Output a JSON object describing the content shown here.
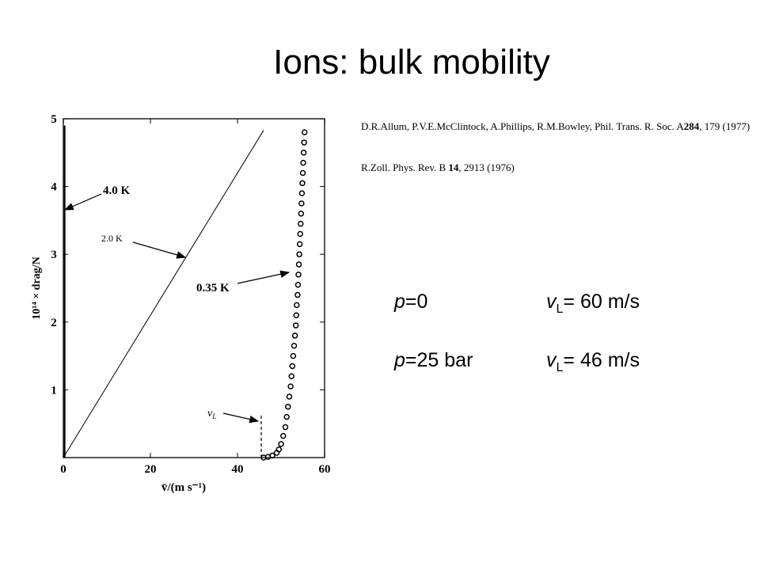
{
  "slide_title": "Ions: bulk mobility",
  "references": [
    [
      "D.R.Allum, P.V.E.McClintock, A.Phillips, R.M.Bowley, Phil. Trans. R. Soc. A",
      "284",
      ", 179 (1977)"
    ],
    [
      "R.Zoll. Phys. Rev. B ",
      "14",
      ", 2913 (1976)"
    ]
  ],
  "conditions": [
    {
      "p": [
        "p",
        "=0"
      ],
      "v": [
        "v",
        "L",
        "= 60 m/s"
      ]
    },
    {
      "p": [
        "p",
        "=25 bar"
      ],
      "v": [
        "v",
        "L",
        "= 46 m/s"
      ]
    }
  ],
  "chart_data": {
    "type": "scatter",
    "xlabel": "v̄/(m s⁻¹)",
    "ylabel": "10¹⁴ × drag/N",
    "xlim": [
      0,
      60
    ],
    "xticks": [
      0,
      20,
      40,
      60
    ],
    "ylim": [
      0,
      5
    ],
    "yticks": [
      1,
      2,
      3,
      4,
      5
    ],
    "vline_label": [
      "v",
      "L"
    ],
    "series": [
      {
        "name": "4.0 K",
        "style": "line",
        "color": "#000000",
        "x": [
          0.3,
          0.3
        ],
        "values": [
          0,
          4.9
        ]
      },
      {
        "name": "2.0 K",
        "style": "line",
        "color": "#000000",
        "x": [
          0,
          46
        ],
        "values": [
          0,
          4.83
        ]
      },
      {
        "name": "0.35 K",
        "style": "circles",
        "color": "#000000",
        "x": [
          46,
          47,
          48,
          49,
          49.5,
          50,
          50.5,
          51,
          51.3,
          51.6,
          51.9,
          52.2,
          52.4,
          52.6,
          52.8,
          53,
          53.2,
          53.4,
          53.5,
          53.6,
          53.8,
          53.9,
          54,
          54.1,
          54.2,
          54.3,
          54.4,
          54.5,
          54.6,
          54.7,
          54.8,
          54.9,
          55,
          55.1,
          55.2,
          55.3,
          55.4
        ],
        "values": [
          0,
          0.01,
          0.03,
          0.07,
          0.12,
          0.2,
          0.32,
          0.45,
          0.6,
          0.75,
          0.9,
          1.05,
          1.2,
          1.35,
          1.5,
          1.65,
          1.8,
          1.95,
          2.1,
          2.25,
          2.4,
          2.55,
          2.7,
          2.85,
          3,
          3.15,
          3.3,
          3.45,
          3.6,
          3.75,
          3.9,
          4.05,
          4.2,
          4.35,
          4.5,
          4.65,
          4.8
        ]
      }
    ]
  }
}
